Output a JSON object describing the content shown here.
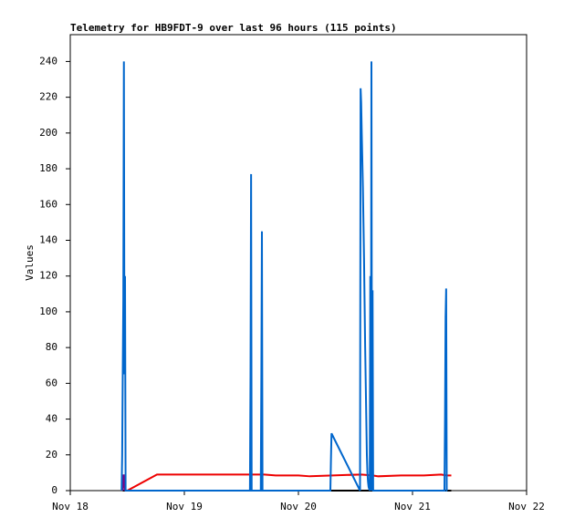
{
  "chart_data": {
    "type": "line",
    "title": "Telemetry for HB9FDT-9 over last 96 hours (115 points)",
    "ylabel": "Values",
    "xlim": [
      0,
      4
    ],
    "xticks": [
      {
        "value": 0,
        "label": "Nov 18"
      },
      {
        "value": 1,
        "label": "Nov 19"
      },
      {
        "value": 2,
        "label": "Nov 20"
      },
      {
        "value": 3,
        "label": "Nov 21"
      },
      {
        "value": 4,
        "label": "Nov 22"
      }
    ],
    "ylim": [
      0,
      255
    ],
    "yticks": [
      0,
      20,
      40,
      60,
      80,
      100,
      120,
      140,
      160,
      180,
      200,
      220,
      240
    ],
    "series": [
      {
        "color": "#ee0000",
        "x": [
          0.5,
          0.76,
          1.0,
          1.3,
          1.58,
          1.7,
          1.8,
          2.0,
          2.1,
          2.3,
          2.55,
          2.65,
          2.7,
          2.9,
          3.1,
          3.25,
          3.3,
          3.34
        ],
        "values": [
          0,
          9,
          9,
          9,
          9,
          9,
          8.5,
          8.5,
          8,
          8.5,
          9,
          8.5,
          8,
          8.5,
          8.5,
          9,
          8.5,
          8.5
        ]
      },
      {
        "color": "#000000",
        "x": [
          0.46,
          3.34
        ],
        "values": [
          0,
          0
        ]
      },
      {
        "color": "#800080",
        "x": [
          0.455,
          0.46,
          0.47,
          0.48
        ],
        "values": [
          9,
          0,
          9,
          0
        ]
      },
      {
        "color": "#0066cc",
        "x": [
          0.45,
          0.455,
          0.46,
          0.465,
          0.47,
          0.475,
          0.48,
          0.485,
          0.49,
          1.575,
          1.58,
          1.585,
          1.59,
          1.67,
          1.675,
          1.68,
          1.685,
          2.28,
          2.285,
          2.29,
          2.54,
          2.545,
          2.55,
          2.555,
          2.56,
          2.565,
          2.57,
          2.575,
          2.58,
          2.585,
          2.59,
          2.595,
          2.6,
          2.605,
          2.61,
          2.615,
          2.62,
          2.625,
          2.63,
          2.635,
          2.64,
          2.645,
          2.65,
          2.655,
          2.66,
          3.28,
          3.285,
          3.29,
          3.295,
          3.3,
          3.305
        ],
        "values": [
          0,
          20,
          65,
          107,
          240,
          65,
          120,
          0,
          0,
          0,
          65,
          177,
          0,
          0,
          65,
          145,
          0,
          0,
          17,
          32,
          0,
          225,
          217,
          200,
          185,
          170,
          150,
          130,
          105,
          80,
          60,
          40,
          20,
          10,
          5,
          2,
          1,
          0,
          120,
          0,
          240,
          0,
          112,
          0,
          0,
          0,
          40,
          97,
          113,
          0,
          0
        ]
      }
    ]
  }
}
